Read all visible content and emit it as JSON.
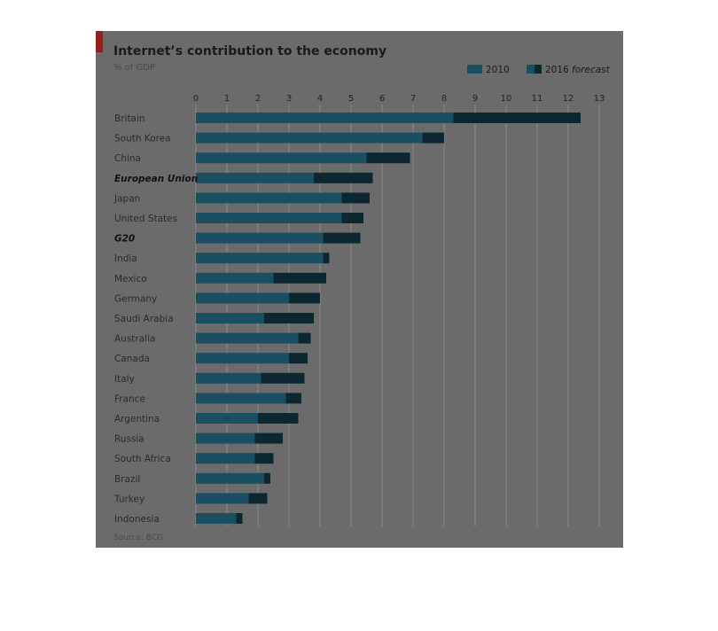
{
  "colors": {
    "panel": "#6b6b6b",
    "gridline": "#8a8a8a",
    "bar_2010": "#1a4f63",
    "bar_2016": "#0d2731",
    "accent_red": "#9b1c1c"
  },
  "chart_data": {
    "type": "bar",
    "orientation": "horizontal",
    "title": "Internet’s contribution to the economy",
    "subtitle": "% of GDP",
    "source": "Source: BCG",
    "xlim": [
      0,
      13
    ],
    "xticks": [
      "0",
      "1",
      "2",
      "3",
      "4",
      "5",
      "6",
      "7",
      "8",
      "9",
      "10",
      "11",
      "12",
      "13"
    ],
    "legend": {
      "placement": "top-right",
      "label_2010": "2010",
      "label_2016_year": "2016",
      "label_2016_word": "forecast"
    },
    "grid": true,
    "categories": [
      "Britain",
      "South Korea",
      "China",
      "European Union",
      "Japan",
      "United States",
      "G20",
      "India",
      "Mexico",
      "Germany",
      "Saudi Arabia",
      "Australia",
      "Canada",
      "Italy",
      "France",
      "Argentina",
      "Russia",
      "South Africa",
      "Brazil",
      "Turkey",
      "Indonesia"
    ],
    "aggregate_categories": [
      "European Union",
      "G20"
    ],
    "series": [
      {
        "name": "2010",
        "values": [
          8.3,
          7.3,
          5.5,
          3.8,
          4.7,
          4.7,
          4.1,
          4.1,
          2.5,
          3.0,
          2.2,
          3.3,
          3.0,
          2.1,
          2.9,
          2.0,
          1.9,
          1.9,
          2.2,
          1.7,
          1.3
        ]
      },
      {
        "name": "2016 forecast",
        "values": [
          12.4,
          8.0,
          6.9,
          5.7,
          5.6,
          5.4,
          5.3,
          4.3,
          4.2,
          4.0,
          3.8,
          3.7,
          3.6,
          3.5,
          3.4,
          3.3,
          2.8,
          2.5,
          2.4,
          2.3,
          1.5
        ]
      }
    ]
  }
}
